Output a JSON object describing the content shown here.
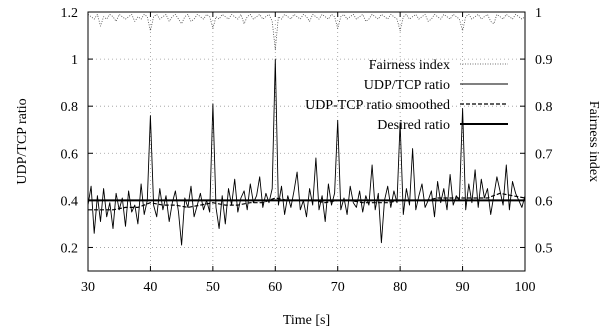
{
  "chart_data": {
    "type": "line",
    "title": "",
    "xlabel": "Time [s]",
    "ylabel": "UDP/TCP ratio",
    "y2label": "Fairness index",
    "xlim": [
      30,
      100
    ],
    "ylim": [
      0.1,
      1.2
    ],
    "y2lim": [
      0.45,
      1.0
    ],
    "x_ticks": [
      30,
      40,
      50,
      60,
      70,
      80,
      90,
      100
    ],
    "y_ticks": [
      0.2,
      0.4,
      0.6,
      0.8,
      1.0,
      1.2
    ],
    "y_tick_labels": [
      "0.2",
      "0.4",
      "0.6",
      "0.8",
      "1",
      "1.2"
    ],
    "y2_ticks": [
      0.5,
      0.6,
      0.7,
      0.8,
      0.9,
      1.0
    ],
    "y2_tick_labels": [
      "0.5",
      "0.6",
      "0.7",
      "0.8",
      "0.9",
      "1"
    ],
    "grid": true,
    "legend_position": "top-right",
    "series": [
      {
        "name": "Fairness index",
        "axis": "right",
        "style": "dotted",
        "x": [
          30,
          30.5,
          31,
          31.5,
          32,
          32.5,
          33,
          33.5,
          34,
          34.5,
          35,
          35.5,
          36,
          36.5,
          37,
          37.5,
          38,
          38.5,
          39,
          39.5,
          40,
          40.5,
          41,
          41.5,
          42,
          42.5,
          43,
          43.5,
          44,
          44.5,
          45,
          45.5,
          46,
          46.5,
          47,
          47.5,
          48,
          48.5,
          49,
          49.5,
          50,
          50.5,
          51,
          51.5,
          52,
          52.5,
          53,
          53.5,
          54,
          54.5,
          55,
          55.5,
          56,
          56.5,
          57,
          57.5,
          58,
          58.5,
          59,
          59.5,
          60,
          60.5,
          61,
          61.5,
          62,
          62.5,
          63,
          63.5,
          64,
          64.5,
          65,
          65.5,
          66,
          66.5,
          67,
          67.5,
          68,
          68.5,
          69,
          69.5,
          70,
          70.5,
          71,
          71.5,
          72,
          72.5,
          73,
          73.5,
          74,
          74.5,
          75,
          75.5,
          76,
          76.5,
          77,
          77.5,
          78,
          78.5,
          79,
          79.5,
          80,
          80.5,
          81,
          81.5,
          82,
          82.5,
          83,
          83.5,
          84,
          84.5,
          85,
          85.5,
          86,
          86.5,
          87,
          87.5,
          88,
          88.5,
          89,
          89.5,
          90,
          90.5,
          91,
          91.5,
          92,
          92.5,
          93,
          93.5,
          94,
          94.5,
          95,
          95.5,
          96,
          96.5,
          97,
          97.5,
          98,
          98.5,
          99,
          99.5,
          100
        ],
        "values": [
          0.995,
          0.99,
          0.985,
          0.995,
          0.97,
          0.99,
          0.985,
          0.995,
          0.99,
          0.98,
          0.995,
          0.99,
          0.985,
          0.99,
          0.995,
          0.98,
          0.99,
          0.985,
          0.995,
          0.99,
          0.96,
          0.99,
          0.995,
          0.985,
          0.99,
          0.995,
          0.98,
          0.99,
          0.995,
          0.985,
          0.975,
          0.99,
          0.995,
          0.98,
          0.985,
          0.995,
          0.99,
          0.985,
          0.995,
          0.99,
          0.965,
          0.99,
          0.985,
          0.995,
          0.99,
          0.985,
          0.995,
          0.99,
          0.985,
          0.995,
          0.975,
          0.99,
          0.995,
          0.985,
          0.99,
          0.995,
          0.985,
          0.99,
          0.995,
          0.98,
          0.92,
          0.99,
          0.985,
          0.995,
          0.99,
          0.985,
          0.995,
          0.99,
          0.985,
          0.995,
          0.99,
          0.98,
          0.995,
          0.99,
          0.985,
          0.995,
          0.99,
          0.985,
          0.995,
          0.99,
          0.965,
          0.99,
          0.995,
          0.985,
          0.99,
          0.995,
          0.985,
          0.99,
          0.995,
          0.98,
          0.985,
          0.995,
          0.99,
          0.985,
          0.995,
          0.99,
          0.985,
          0.995,
          0.99,
          0.985,
          0.96,
          0.99,
          0.995,
          0.985,
          0.99,
          0.995,
          0.985,
          0.99,
          0.995,
          0.98,
          0.985,
          0.995,
          0.99,
          0.985,
          0.995,
          0.99,
          0.985,
          0.995,
          0.99,
          0.985,
          0.96,
          0.99,
          0.995,
          0.985,
          0.99,
          0.995,
          0.985,
          0.99,
          0.995,
          0.98,
          0.975,
          0.995,
          0.99,
          0.985,
          0.995,
          0.99,
          0.985,
          0.995,
          0.99,
          0.985,
          0.99
        ]
      },
      {
        "name": "UDP/TCP ratio",
        "axis": "left",
        "style": "solid-thin",
        "x": [
          30,
          30.5,
          31,
          31.5,
          32,
          32.5,
          33,
          33.5,
          34,
          34.5,
          35,
          35.5,
          36,
          36.5,
          37,
          37.5,
          38,
          38.5,
          39,
          39.5,
          40,
          40.5,
          41,
          41.5,
          42,
          42.5,
          43,
          43.5,
          44,
          44.5,
          45,
          45.5,
          46,
          46.5,
          47,
          47.5,
          48,
          48.5,
          49,
          49.5,
          50,
          50.5,
          51,
          51.5,
          52,
          52.5,
          53,
          53.5,
          54,
          54.5,
          55,
          55.5,
          56,
          56.5,
          57,
          57.5,
          58,
          58.5,
          59,
          59.5,
          60,
          60.5,
          61,
          61.5,
          62,
          62.5,
          63,
          63.5,
          64,
          64.5,
          65,
          65.5,
          66,
          66.5,
          67,
          67.5,
          68,
          68.5,
          69,
          69.5,
          70,
          70.5,
          71,
          71.5,
          72,
          72.5,
          73,
          73.5,
          74,
          74.5,
          75,
          75.5,
          76,
          76.5,
          77,
          77.5,
          78,
          78.5,
          79,
          79.5,
          80,
          80.5,
          81,
          81.5,
          82,
          82.5,
          83,
          83.5,
          84,
          84.5,
          85,
          85.5,
          86,
          86.5,
          87,
          87.5,
          88,
          88.5,
          89,
          89.5,
          90,
          90.5,
          91,
          91.5,
          92,
          92.5,
          93,
          93.5,
          94,
          94.5,
          95,
          95.5,
          96,
          96.5,
          97,
          97.5,
          98,
          98.5,
          99,
          99.5,
          100
        ],
        "values": [
          0.38,
          0.46,
          0.26,
          0.42,
          0.31,
          0.45,
          0.33,
          0.39,
          0.28,
          0.43,
          0.36,
          0.41,
          0.29,
          0.44,
          0.35,
          0.38,
          0.3,
          0.47,
          0.34,
          0.4,
          0.76,
          0.38,
          0.33,
          0.45,
          0.36,
          0.42,
          0.31,
          0.39,
          0.44,
          0.35,
          0.21,
          0.41,
          0.37,
          0.46,
          0.33,
          0.38,
          0.43,
          0.36,
          0.4,
          0.35,
          0.81,
          0.37,
          0.28,
          0.42,
          0.3,
          0.45,
          0.38,
          0.49,
          0.35,
          0.41,
          0.44,
          0.36,
          0.47,
          0.39,
          0.42,
          0.5,
          0.37,
          0.43,
          0.39,
          0.45,
          1.0,
          0.38,
          0.46,
          0.34,
          0.42,
          0.37,
          0.44,
          0.52,
          0.36,
          0.4,
          0.33,
          0.45,
          0.38,
          0.58,
          0.36,
          0.42,
          0.31,
          0.47,
          0.38,
          0.43,
          0.74,
          0.36,
          0.41,
          0.34,
          0.46,
          0.39,
          0.37,
          0.44,
          0.35,
          0.42,
          0.38,
          0.55,
          0.36,
          0.43,
          0.22,
          0.4,
          0.46,
          0.37,
          0.44,
          0.39,
          0.73,
          0.34,
          0.45,
          0.38,
          0.62,
          0.36,
          0.42,
          0.47,
          0.37,
          0.4,
          0.44,
          0.33,
          0.48,
          0.39,
          0.45,
          0.36,
          0.51,
          0.38,
          0.42,
          0.4,
          0.79,
          0.36,
          0.47,
          0.39,
          0.53,
          0.37,
          0.49,
          0.41,
          0.45,
          0.34,
          0.42,
          0.5,
          0.44,
          0.38,
          0.55,
          0.36,
          0.48,
          0.43,
          0.4,
          0.37,
          0.42
        ]
      },
      {
        "name": "UDP-TCP ratio smoothed",
        "axis": "left",
        "style": "dashed",
        "x": [
          30,
          32,
          34,
          36,
          38,
          40,
          42,
          44,
          46,
          48,
          50,
          52,
          54,
          56,
          58,
          60,
          62,
          64,
          66,
          68,
          70,
          72,
          74,
          76,
          78,
          80,
          82,
          84,
          86,
          88,
          90,
          92,
          94,
          96,
          98,
          100
        ],
        "values": [
          0.36,
          0.36,
          0.36,
          0.37,
          0.37,
          0.39,
          0.38,
          0.38,
          0.37,
          0.38,
          0.39,
          0.38,
          0.38,
          0.39,
          0.39,
          0.41,
          0.4,
          0.4,
          0.4,
          0.39,
          0.4,
          0.4,
          0.39,
          0.39,
          0.39,
          0.4,
          0.4,
          0.4,
          0.41,
          0.41,
          0.41,
          0.41,
          0.41,
          0.43,
          0.42,
          0.41
        ]
      },
      {
        "name": "Desired ratio",
        "axis": "left",
        "style": "solid-thick",
        "x": [
          30,
          100
        ],
        "values": [
          0.4,
          0.4
        ]
      }
    ]
  }
}
